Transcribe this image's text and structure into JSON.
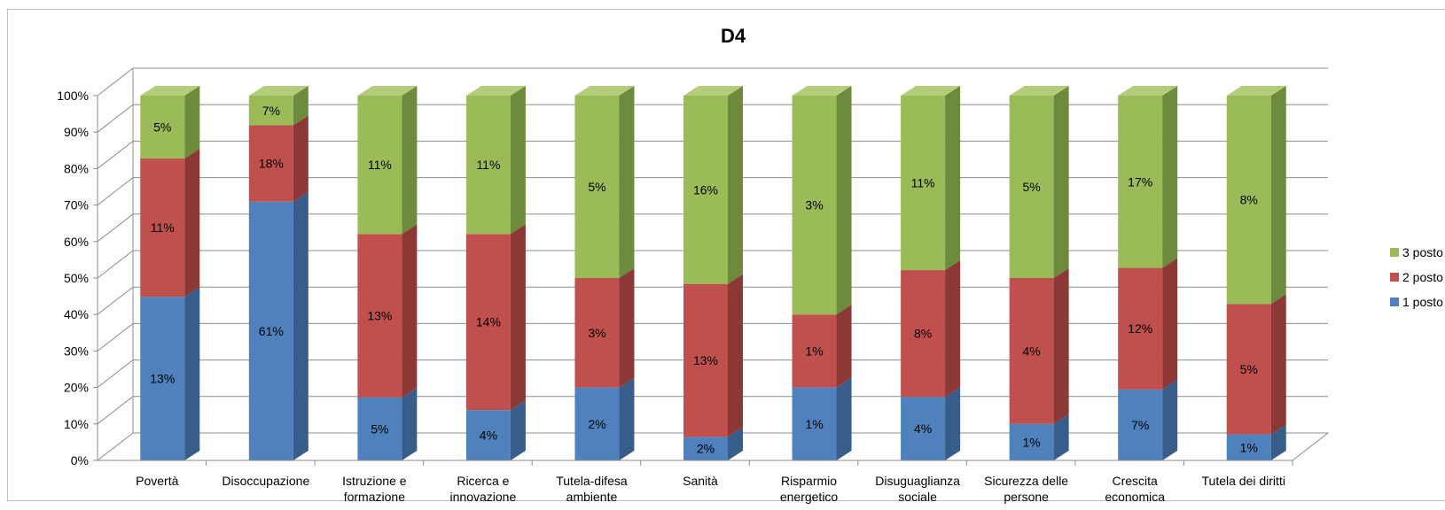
{
  "chart_data": {
    "type": "bar",
    "stacked": true,
    "percent_stacked": true,
    "three_d": true,
    "title": "D4",
    "xlabel": "",
    "ylabel": "",
    "ylim": [
      0,
      100
    ],
    "y_ticks": [
      "0%",
      "10%",
      "20%",
      "30%",
      "40%",
      "50%",
      "60%",
      "70%",
      "80%",
      "90%",
      "100%"
    ],
    "grid": true,
    "legend_position": "right",
    "categories": [
      [
        "Povertà"
      ],
      [
        "Disoccupazione"
      ],
      [
        "Istruzione e",
        "formazione"
      ],
      [
        "Ricerca e",
        "innovazione"
      ],
      [
        "Tutela-difesa",
        "ambiente"
      ],
      [
        "Sanità"
      ],
      [
        "Risparmio",
        "energetico"
      ],
      [
        "Disuguaglianza",
        "sociale"
      ],
      [
        "Sicurezza delle",
        "persone"
      ],
      [
        "Crescita",
        "economica"
      ],
      [
        "Tutela dei diritti"
      ]
    ],
    "series": [
      {
        "name": "1 posto",
        "color": "#4f81bd",
        "side": "#385d8a",
        "top": "#6a96cb",
        "values": [
          13,
          61,
          5,
          4,
          2,
          2,
          1,
          4,
          1,
          7,
          1
        ],
        "labels": [
          "13%",
          "61%",
          "5%",
          "4%",
          "2%",
          "2%",
          "1%",
          "4%",
          "1%",
          "7%",
          "1%"
        ]
      },
      {
        "name": "2 posto",
        "color": "#c0504d",
        "side": "#8c3836",
        "top": "#d06a67",
        "values": [
          11,
          18,
          13,
          14,
          3,
          13,
          1,
          8,
          4,
          12,
          5
        ],
        "labels": [
          "11%",
          "18%",
          "13%",
          "14%",
          "3%",
          "13%",
          "1%",
          "8%",
          "4%",
          "12%",
          "5%"
        ]
      },
      {
        "name": "3 posto",
        "color": "#9bbb59",
        "side": "#6e8a3c",
        "top": "#b3cd7a",
        "values": [
          5,
          7,
          11,
          11,
          5,
          16,
          3,
          11,
          5,
          17,
          8
        ],
        "labels": [
          "5%",
          "7%",
          "11%",
          "11%",
          "5%",
          "16%",
          "3%",
          "11%",
          "5%",
          "17%",
          "8%"
        ]
      }
    ]
  }
}
